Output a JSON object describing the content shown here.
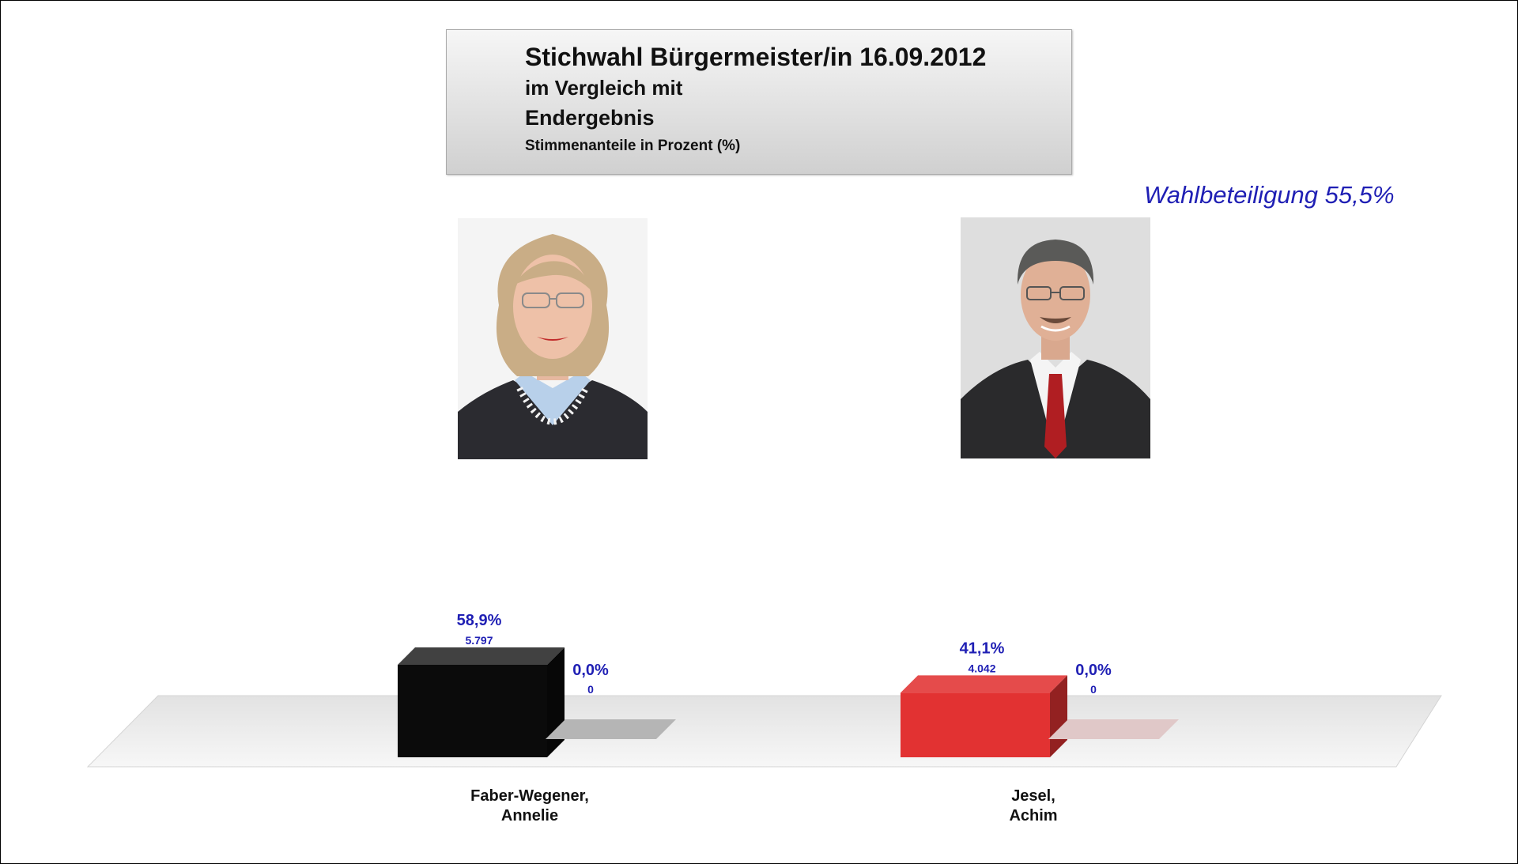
{
  "header": {
    "title": "Stichwahl Bürgermeister/in 16.09.2012",
    "line2": "im Vergleich mit",
    "line3": "Endergebnis",
    "line4": "Stimmenanteile in Prozent (%)"
  },
  "turnout": "Wahlbeteiligung 55,5%",
  "candidates": [
    {
      "name_line1": "Faber-Wegener,",
      "name_line2": "Annelie"
    },
    {
      "name_line1": "Jesel,",
      "name_line2": "Achim"
    }
  ],
  "chart_data": {
    "type": "bar",
    "categories": [
      "Faber-Wegener, Annelie",
      "Jesel, Achim"
    ],
    "series": [
      {
        "values": [
          58.9,
          41.1
        ],
        "labels": [
          "58,9%",
          "41,1%"
        ],
        "counts": [
          "5.797",
          "4.042"
        ],
        "colors": [
          "#0b0b0b",
          "#e23232"
        ]
      },
      {
        "values": [
          0.0,
          0.0
        ],
        "labels": [
          "0,0%",
          "0,0%"
        ],
        "counts": [
          "0",
          "0"
        ],
        "colors": [
          "#b5b5b5",
          "#e0c8c8"
        ]
      }
    ],
    "ylim": [
      0,
      100
    ],
    "grid": false,
    "style": "3d"
  }
}
